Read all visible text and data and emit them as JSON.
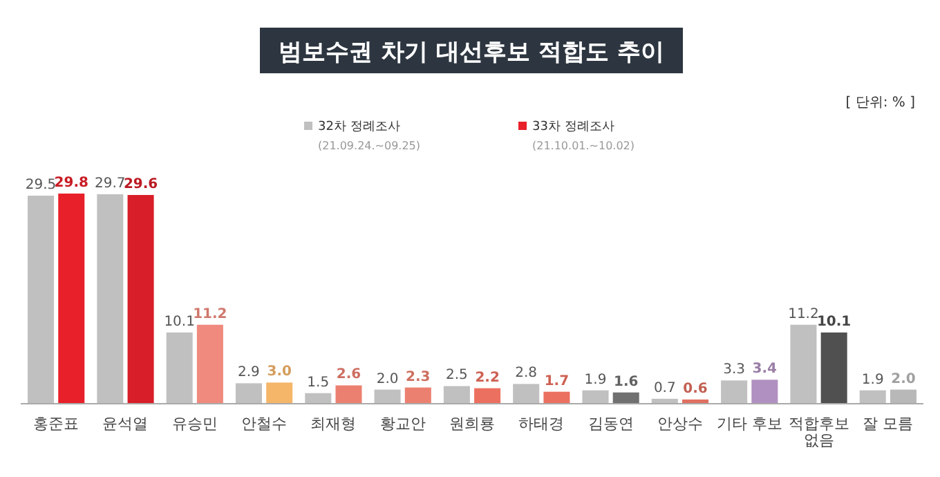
{
  "chart_data": {
    "type": "bar",
    "title": "범보수권 차기 대선후보 적합도 추이",
    "categories": [
      "홍준표",
      "윤석열",
      "유승민",
      "안철수",
      "최재형",
      "황교안",
      "원희룡",
      "하태경",
      "김동연",
      "안상수",
      "기타 후보",
      "적합후보 없음",
      "잘 모름"
    ],
    "series": [
      {
        "name": "32차 정례조사",
        "color": "#c0c0c0",
        "values": [
          29.5,
          29.7,
          10.1,
          2.9,
          1.5,
          2.0,
          2.5,
          2.8,
          1.9,
          0.7,
          3.3,
          11.2,
          1.9
        ],
        "value_labels": [
          "29.5",
          "29.7",
          "10.1",
          "2.9",
          "1.5",
          "2.0",
          "2.5",
          "2.8",
          "1.9",
          "0.7",
          "3.3",
          "11.2",
          "1.9"
        ]
      },
      {
        "name": "33차 정례조사",
        "color": "#e8202a",
        "colors": [
          "#e8202a",
          "#d81e28",
          "#f08a7e",
          "#f5b66a",
          "#ec8070",
          "#ec8070",
          "#ec7060",
          "#ec7060",
          "#707070",
          "#e07060",
          "#b090c0",
          "#505050",
          "#b8b8b8"
        ],
        "values": [
          29.8,
          29.6,
          11.2,
          3.0,
          2.6,
          2.3,
          2.2,
          1.7,
          1.6,
          0.6,
          3.4,
          10.1,
          2.0
        ],
        "value_labels": [
          "29.8",
          "29.6",
          "11.2",
          "3.0",
          "2.6",
          "2.3",
          "2.2",
          "1.7",
          "1.6",
          "0.6",
          "3.4",
          "10.1",
          "2.0"
        ]
      }
    ],
    "legend": "top",
    "annotations": [
      "(21.09.24.~09.25)",
      "(21.10.01.~10.02)",
      "[ 단위: % ]"
    ]
  }
}
